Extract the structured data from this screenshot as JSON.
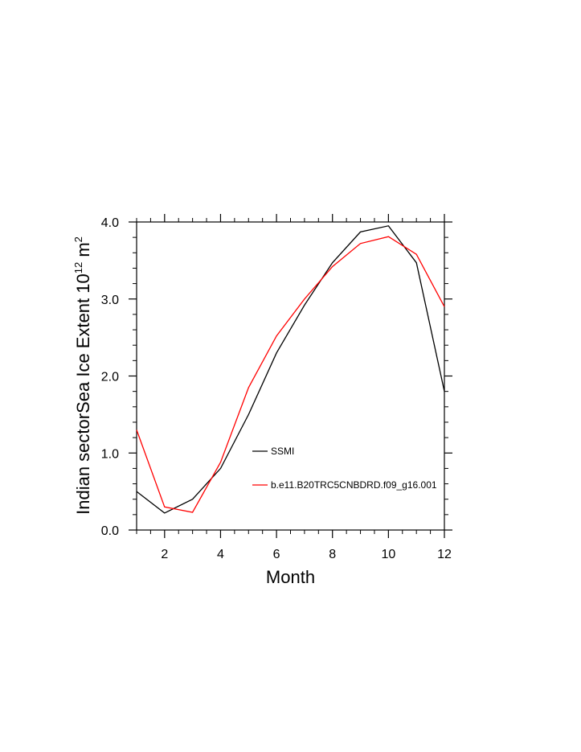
{
  "chart_data": {
    "type": "line",
    "xlabel": "Month",
    "ylabel": {
      "main": "Indian sectorSea Ice Extent 10",
      "exp1": "12",
      "unit": " m",
      "exp2": "2"
    },
    "xlim": [
      1,
      12
    ],
    "ylim": [
      0,
      4
    ],
    "xticks": [
      2,
      4,
      6,
      8,
      10,
      12
    ],
    "yticks": [
      0,
      1,
      2,
      3,
      4
    ],
    "yticklabels": [
      "0.0",
      "1.0",
      "2.0",
      "3.0",
      "4.0"
    ],
    "legend_position": "inside-lower-center",
    "x": [
      1,
      2,
      3,
      4,
      5,
      6,
      7,
      8,
      9,
      10,
      11,
      12
    ],
    "series": [
      {
        "name": "SSMI",
        "color": "#000000",
        "values": [
          0.5,
          0.22,
          0.4,
          0.8,
          1.5,
          2.3,
          2.92,
          3.47,
          3.87,
          3.95,
          3.47,
          1.8
        ]
      },
      {
        "name": "b.e11.B20TRC5CNBDRD.f09_g16.001",
        "color": "#ff0000",
        "values": [
          1.3,
          0.3,
          0.23,
          0.88,
          1.85,
          2.52,
          3.0,
          3.42,
          3.72,
          3.81,
          3.58,
          2.9
        ]
      }
    ]
  }
}
